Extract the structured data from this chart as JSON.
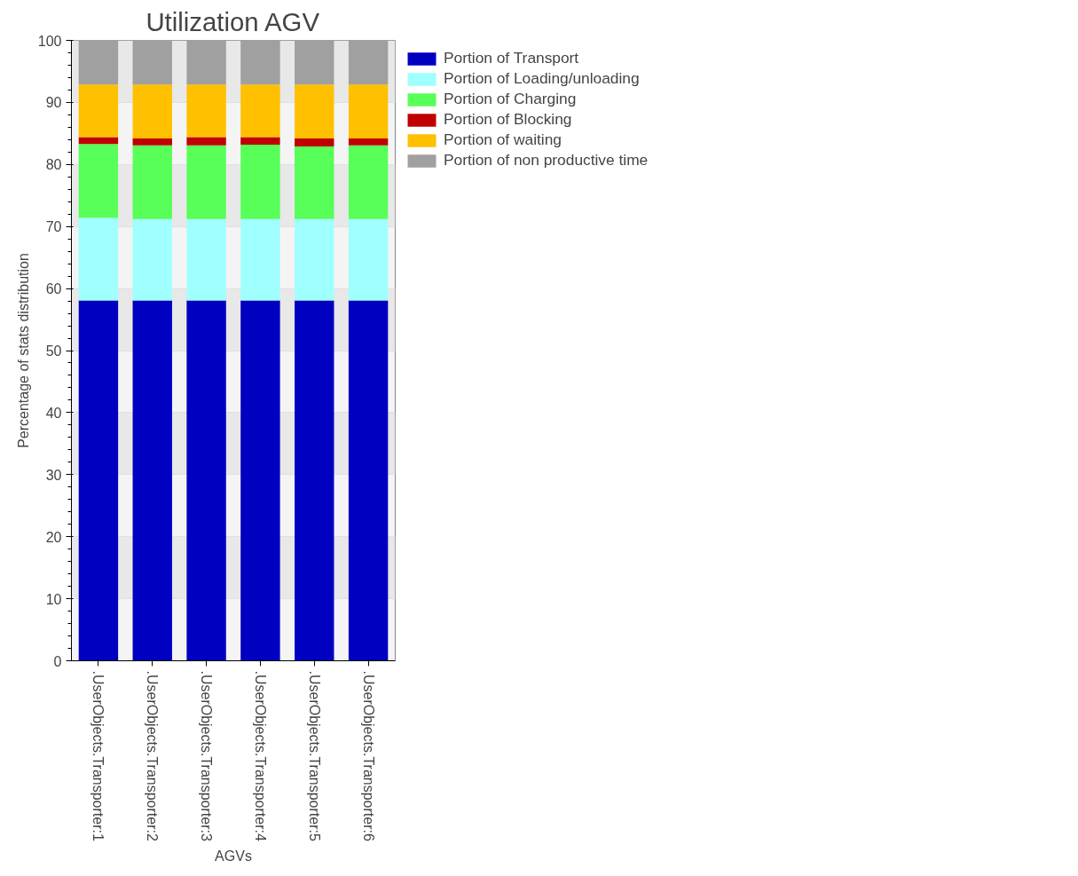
{
  "chart_data": {
    "type": "bar",
    "title": "Utilization AGV",
    "xlabel": "AGVs",
    "ylabel": "Percentage of stats distribution",
    "categories": [
      ".UserObjects.Transporter:1",
      ".UserObjects.Transporter:2",
      ".UserObjects.Transporter:3",
      ".UserObjects.Transporter:4",
      ".UserObjects.Transporter:5",
      ".UserObjects.Transporter:6"
    ],
    "stacked": true,
    "series": [
      {
        "name": "Portion of Transport",
        "color": "#0000c0",
        "values": [
          58.1,
          58.1,
          58.1,
          58.1,
          58.1,
          58.1
        ]
      },
      {
        "name": "Portion of Loading/unloading",
        "color": "#a0ffff",
        "values": [
          13.3,
          13.1,
          13.1,
          13.1,
          13.1,
          13.1
        ]
      },
      {
        "name": "Portion of Charging",
        "color": "#58ff58",
        "values": [
          11.9,
          11.9,
          11.9,
          12.0,
          11.7,
          11.9
        ]
      },
      {
        "name": "Portion of Blocking",
        "color": "#c00000",
        "values": [
          1.1,
          1.1,
          1.3,
          1.2,
          1.3,
          1.1
        ]
      },
      {
        "name": "Portion of waiting",
        "color": "#ffc000",
        "values": [
          8.5,
          8.7,
          8.5,
          8.5,
          8.7,
          8.7
        ]
      },
      {
        "name": "Portion of non productive time",
        "color": "#a0a0a0",
        "values": [
          7.1,
          7.1,
          7.1,
          7.1,
          7.1,
          7.1
        ]
      }
    ],
    "ylim": [
      0,
      100
    ],
    "yticks": [
      0,
      10,
      20,
      30,
      40,
      50,
      60,
      70,
      80,
      90,
      100
    ],
    "grid": "y",
    "legend": "top right"
  }
}
